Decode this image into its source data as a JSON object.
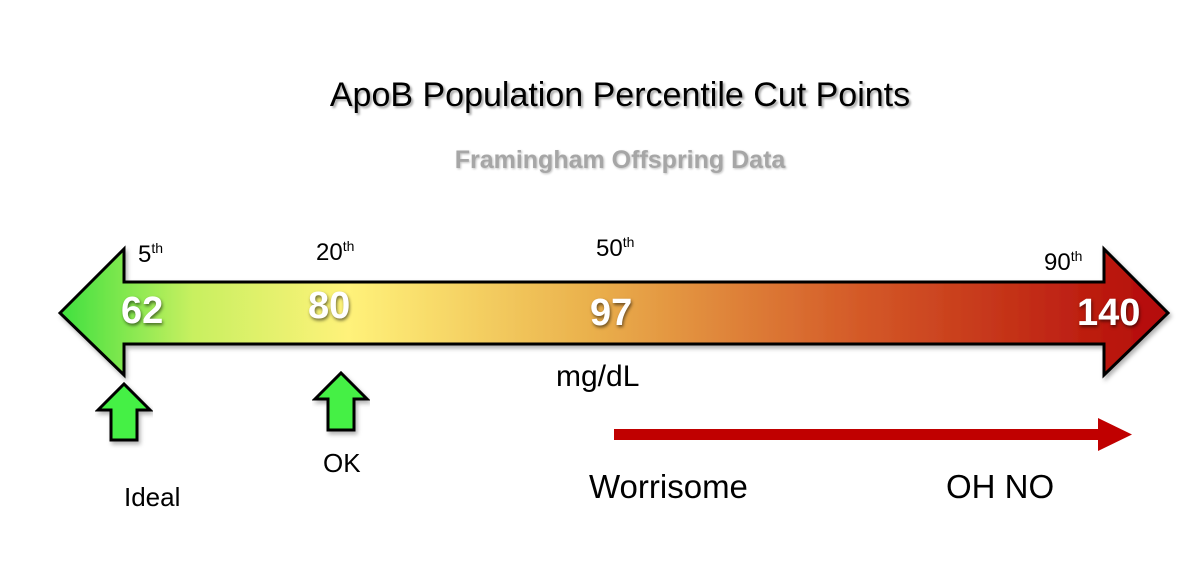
{
  "title": "ApoB Population Percentile Cut Points",
  "subtitle": "Framingham Offspring Data",
  "unit": "mg/dL",
  "cut_points": [
    {
      "percentile_num": "5",
      "percentile_suffix": "th",
      "value": "62"
    },
    {
      "percentile_num": "20",
      "percentile_suffix": "th",
      "value": "80"
    },
    {
      "percentile_num": "50",
      "percentile_suffix": "th",
      "value": "97"
    },
    {
      "percentile_num": "90",
      "percentile_suffix": "th",
      "value": "140"
    }
  ],
  "categories": {
    "ideal": "Ideal",
    "ok": "OK",
    "worrisome": "Worrisome",
    "oh_no": "OH NO"
  },
  "colors": {
    "green": "#3fe03f",
    "yellow": "#fff27a",
    "orange": "#e8a040",
    "red": "#b80c0c",
    "worrisome_arrow": "#c00000"
  }
}
